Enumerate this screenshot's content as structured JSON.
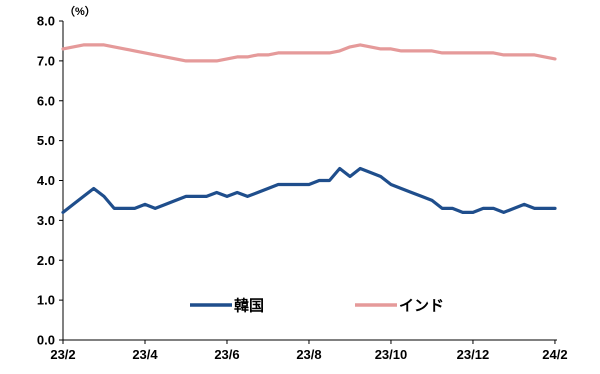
{
  "chart_data": {
    "type": "line",
    "y_unit": "（%）",
    "ylim": [
      0,
      8
    ],
    "y_ticks": [
      "0.0",
      "1.0",
      "2.0",
      "3.0",
      "4.0",
      "5.0",
      "6.0",
      "7.0",
      "8.0"
    ],
    "x_ticks": [
      "23/2",
      "23/4",
      "23/6",
      "23/8",
      "23/10",
      "23/12",
      "24/2"
    ],
    "x_tick_positions": [
      0,
      2,
      4,
      6,
      8,
      10,
      12
    ],
    "xlim": [
      0,
      12.05
    ],
    "grid": false,
    "legend_position": "bottom-center",
    "x": [
      0,
      0.25,
      0.5,
      0.75,
      1.0,
      1.25,
      1.5,
      1.75,
      2.0,
      2.25,
      2.5,
      2.75,
      3.0,
      3.25,
      3.5,
      3.75,
      4.0,
      4.25,
      4.5,
      4.75,
      5.0,
      5.25,
      5.5,
      5.75,
      6.0,
      6.25,
      6.5,
      6.75,
      7.0,
      7.25,
      7.5,
      7.75,
      8.0,
      8.25,
      8.5,
      8.75,
      9.0,
      9.25,
      9.5,
      9.75,
      10.0,
      10.25,
      10.5,
      10.75,
      11.0,
      11.25,
      11.5,
      11.75,
      12.0
    ],
    "series": [
      {
        "name": "韓国",
        "color": "#1f4e8c",
        "values": [
          3.2,
          3.4,
          3.6,
          3.8,
          3.6,
          3.3,
          3.3,
          3.3,
          3.4,
          3.3,
          3.4,
          3.5,
          3.6,
          3.6,
          3.6,
          3.7,
          3.6,
          3.7,
          3.6,
          3.7,
          3.8,
          3.9,
          3.9,
          3.9,
          3.9,
          4.0,
          4.0,
          4.3,
          4.1,
          4.3,
          4.2,
          4.1,
          3.9,
          3.8,
          3.7,
          3.6,
          3.5,
          3.3,
          3.3,
          3.2,
          3.2,
          3.3,
          3.3,
          3.2,
          3.3,
          3.4,
          3.3,
          3.3,
          3.3
        ]
      },
      {
        "name": "インド",
        "color": "#e59a9a",
        "values": [
          7.3,
          7.35,
          7.4,
          7.4,
          7.4,
          7.35,
          7.3,
          7.25,
          7.2,
          7.15,
          7.1,
          7.05,
          7.0,
          7.0,
          7.0,
          7.0,
          7.05,
          7.1,
          7.1,
          7.15,
          7.15,
          7.2,
          7.2,
          7.2,
          7.2,
          7.2,
          7.2,
          7.25,
          7.35,
          7.4,
          7.35,
          7.3,
          7.3,
          7.25,
          7.25,
          7.25,
          7.25,
          7.2,
          7.2,
          7.2,
          7.2,
          7.2,
          7.2,
          7.15,
          7.15,
          7.15,
          7.15,
          7.1,
          7.05
        ]
      }
    ]
  }
}
